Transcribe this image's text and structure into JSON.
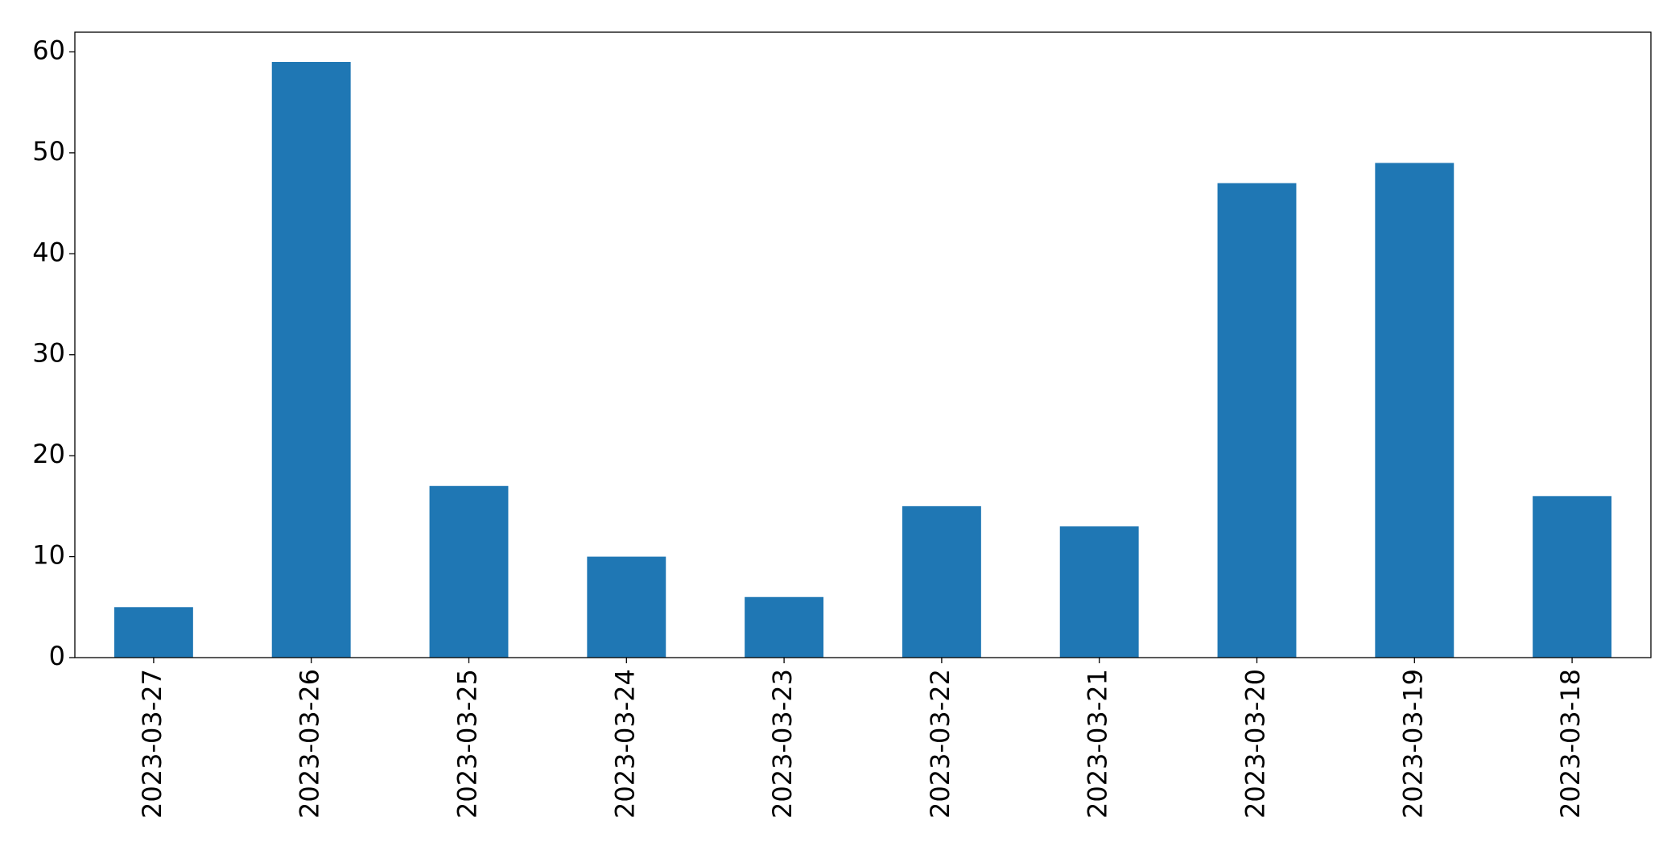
{
  "chart_data": {
    "type": "bar",
    "categories": [
      "2023-03-27",
      "2023-03-26",
      "2023-03-25",
      "2023-03-24",
      "2023-03-23",
      "2023-03-22",
      "2023-03-21",
      "2023-03-20",
      "2023-03-19",
      "2023-03-18"
    ],
    "values": [
      5,
      59,
      17,
      10,
      6,
      15,
      13,
      47,
      49,
      16
    ],
    "color": "#1f77b4",
    "ylim": [
      0,
      61.95
    ],
    "yticks": [
      0,
      10,
      20,
      30,
      40,
      50,
      60
    ],
    "grid": false
  }
}
